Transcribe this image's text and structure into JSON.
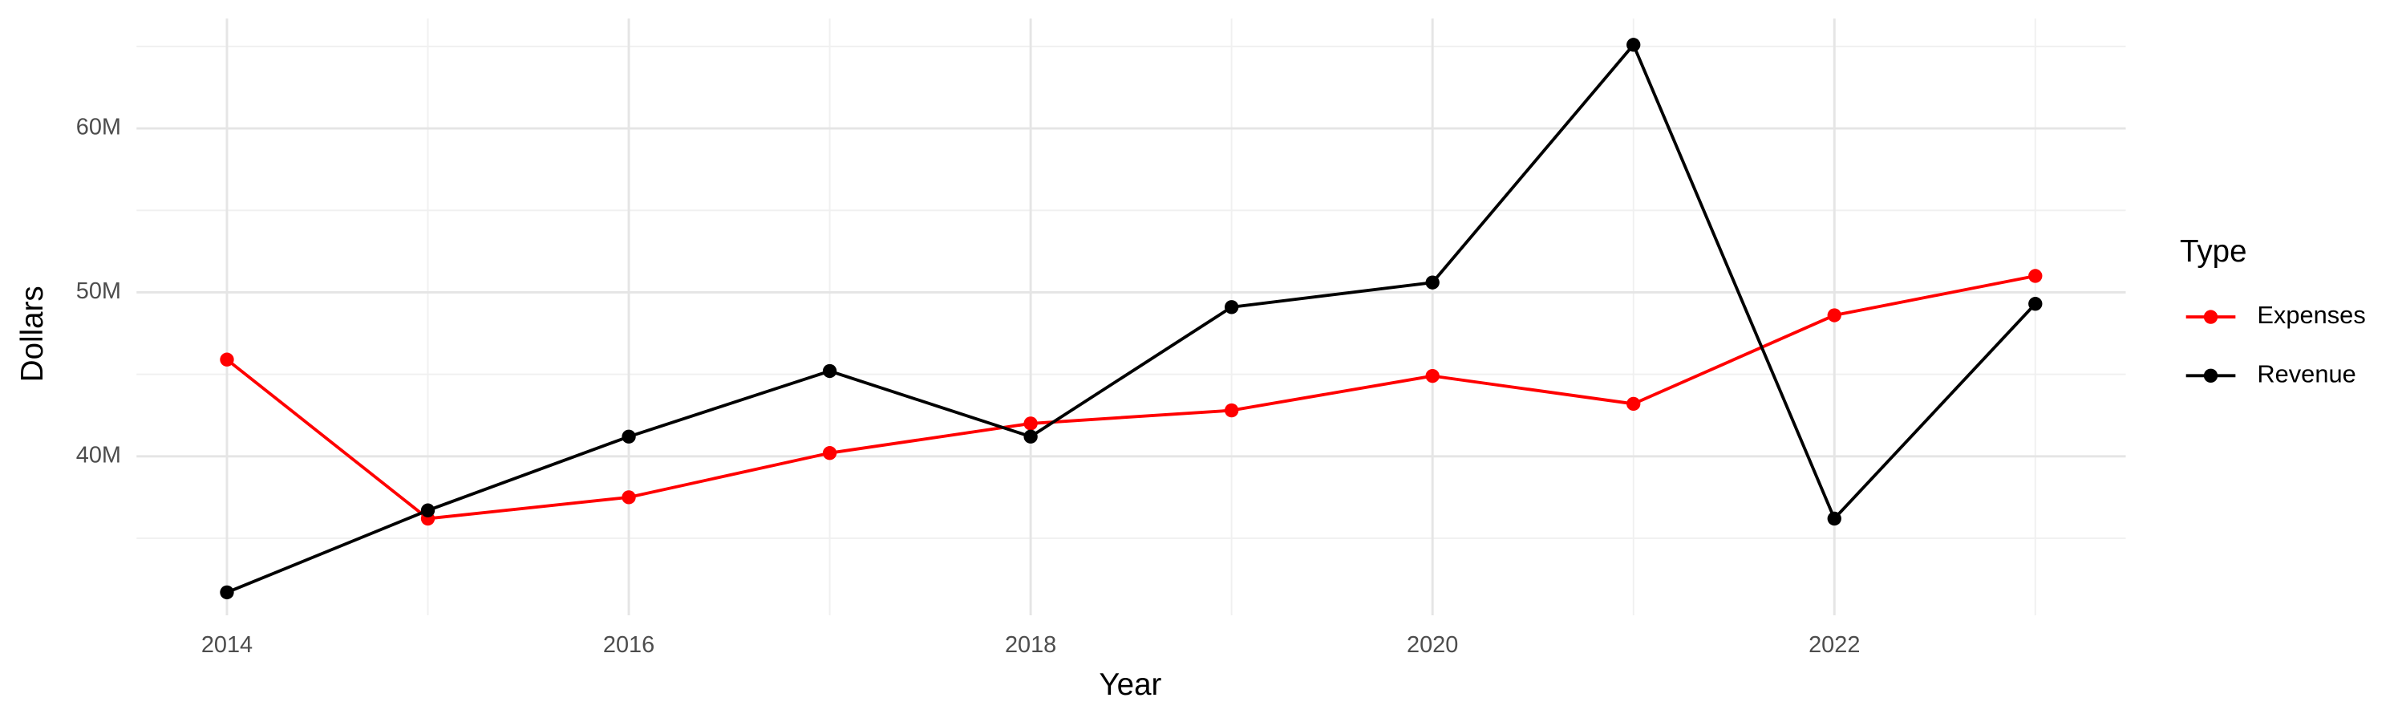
{
  "chart_data": {
    "type": "line",
    "x_label": "Year",
    "y_label": "Dollars",
    "x": [
      2014,
      2015,
      2016,
      2017,
      2018,
      2019,
      2020,
      2021,
      2022,
      2023
    ],
    "series": [
      {
        "name": "Expenses",
        "color": "#ff0000",
        "values": [
          45900000,
          36200000,
          37500000,
          40200000,
          42000000,
          42800000,
          44900000,
          43200000,
          48600000,
          51000000
        ]
      },
      {
        "name": "Revenue",
        "color": "#000000",
        "values": [
          31700000,
          36700000,
          41200000,
          45200000,
          41200000,
          49100000,
          50600000,
          65100000,
          36200000,
          49300000
        ]
      }
    ],
    "xlim": [
      2013.55,
      2023.45
    ],
    "xticks": [
      2014,
      2016,
      2018,
      2020,
      2022
    ],
    "xminorticks": [
      2015,
      2017,
      2019,
      2021,
      2023
    ],
    "ylim": [
      30300000,
      66700000
    ],
    "yticks": [
      {
        "value": 40000000,
        "label": "40M"
      },
      {
        "value": 50000000,
        "label": "50M"
      },
      {
        "value": 60000000,
        "label": "60M"
      }
    ],
    "yminorticks": [
      35000000,
      45000000,
      55000000,
      65000000
    ],
    "grid": true,
    "legend_title": "Type",
    "legend_position": "right"
  }
}
